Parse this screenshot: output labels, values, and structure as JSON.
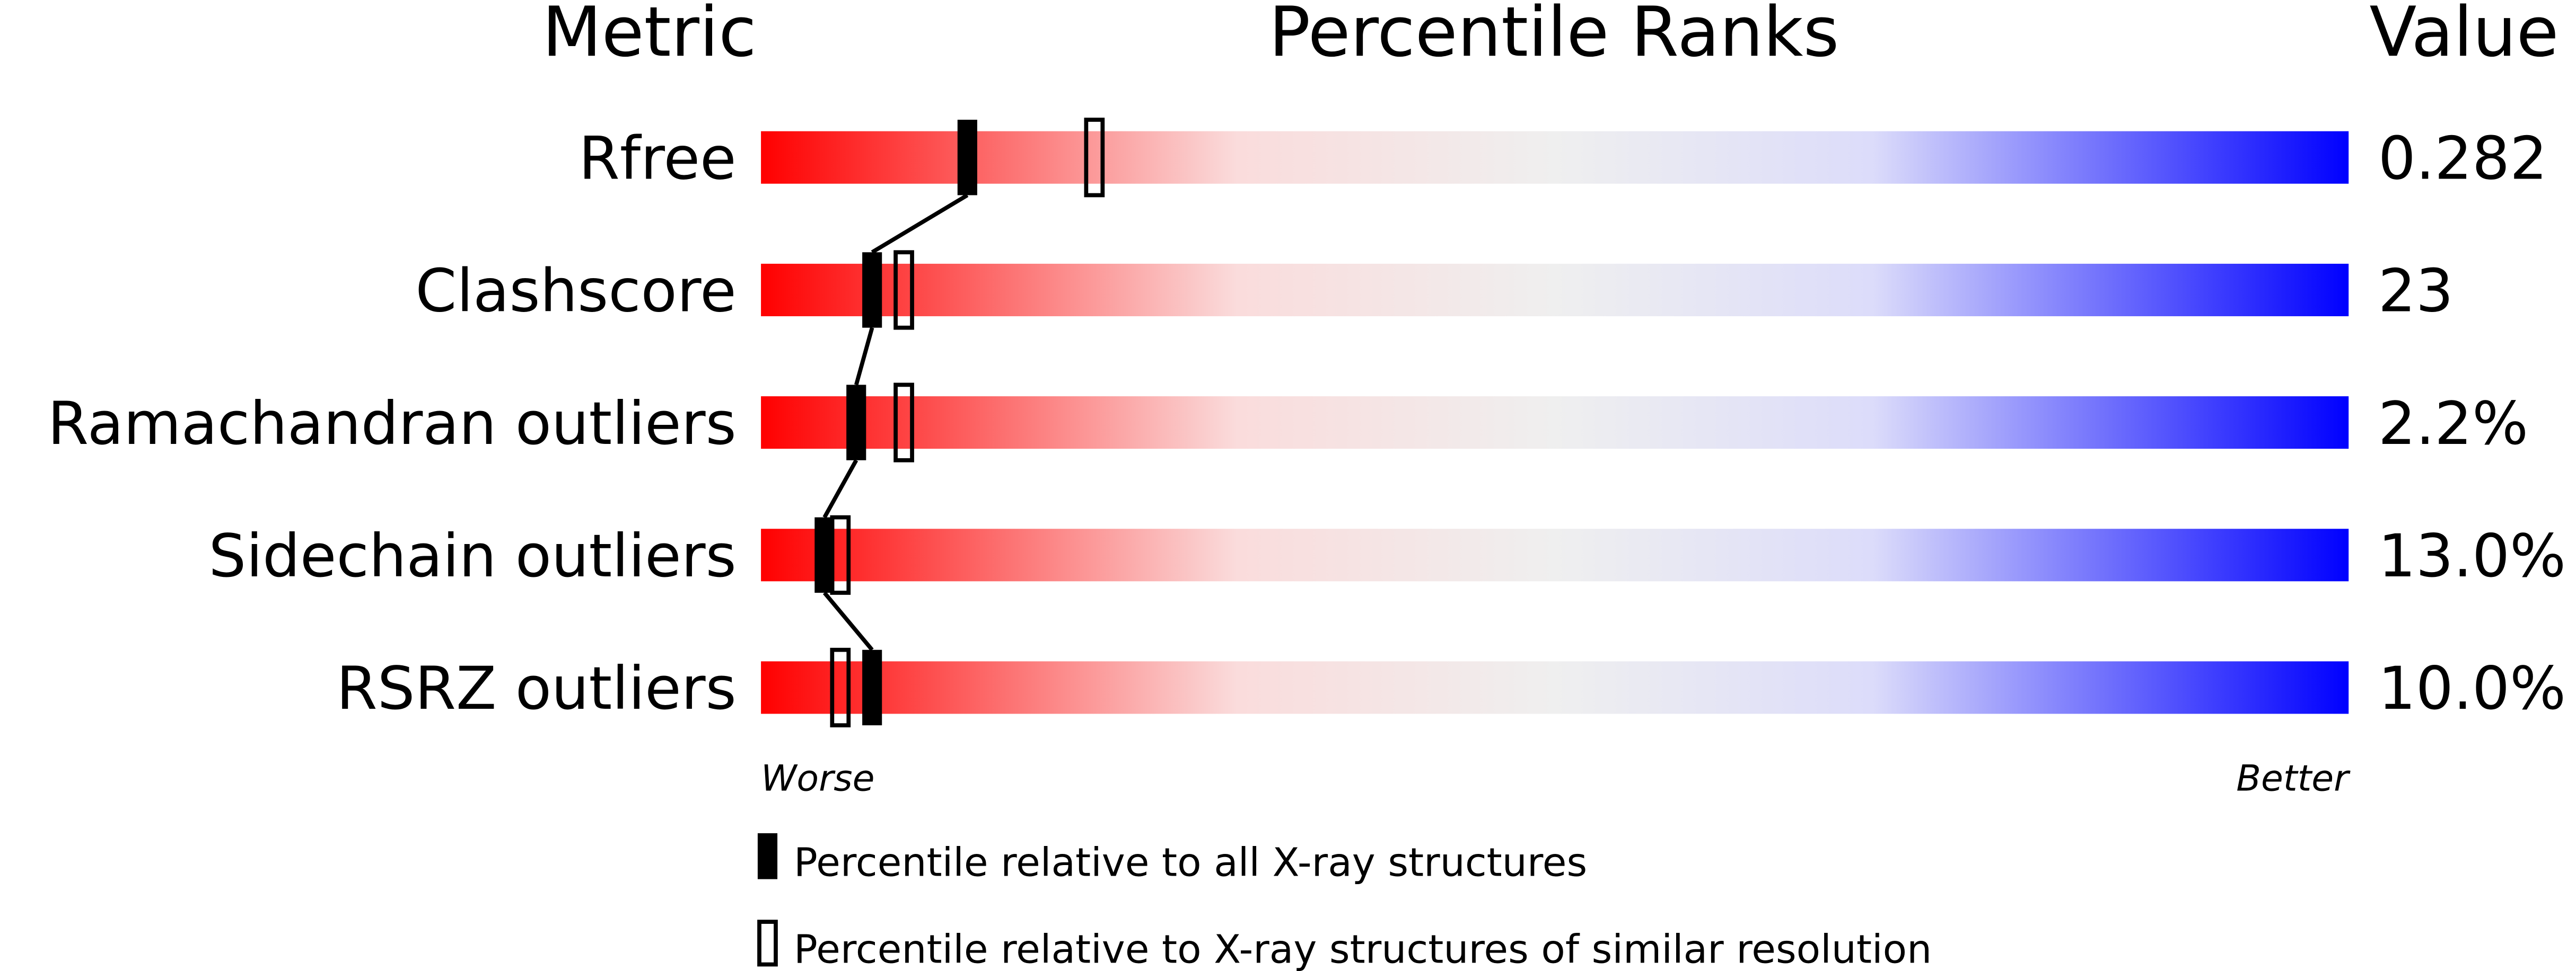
{
  "chart_data": {
    "type": "percentile_slider",
    "column_headers": [
      "Metric",
      "Percentile Ranks",
      "Value"
    ],
    "categories": [
      "Rfree",
      "Clashscore",
      "Ramachandran outliers",
      "Sidechain outliers",
      "RSRZ outliers"
    ],
    "metric_values": [
      "0.282",
      "23",
      "2.2%",
      "13.0%",
      "10.0%"
    ],
    "xlim": [
      0,
      100
    ],
    "axis_labels": {
      "low": "Worse",
      "high": "Better"
    },
    "series": [
      {
        "name": "Percentile relative to all X-ray structures",
        "color": "#000000",
        "style": "filled",
        "values": [
          13,
          7,
          6,
          4,
          7
        ]
      },
      {
        "name": "Percentile relative to X-ray structures of similar resolution",
        "color": "#000000",
        "style": "outline",
        "values": [
          21,
          9,
          9,
          5,
          5
        ]
      }
    ]
  }
}
